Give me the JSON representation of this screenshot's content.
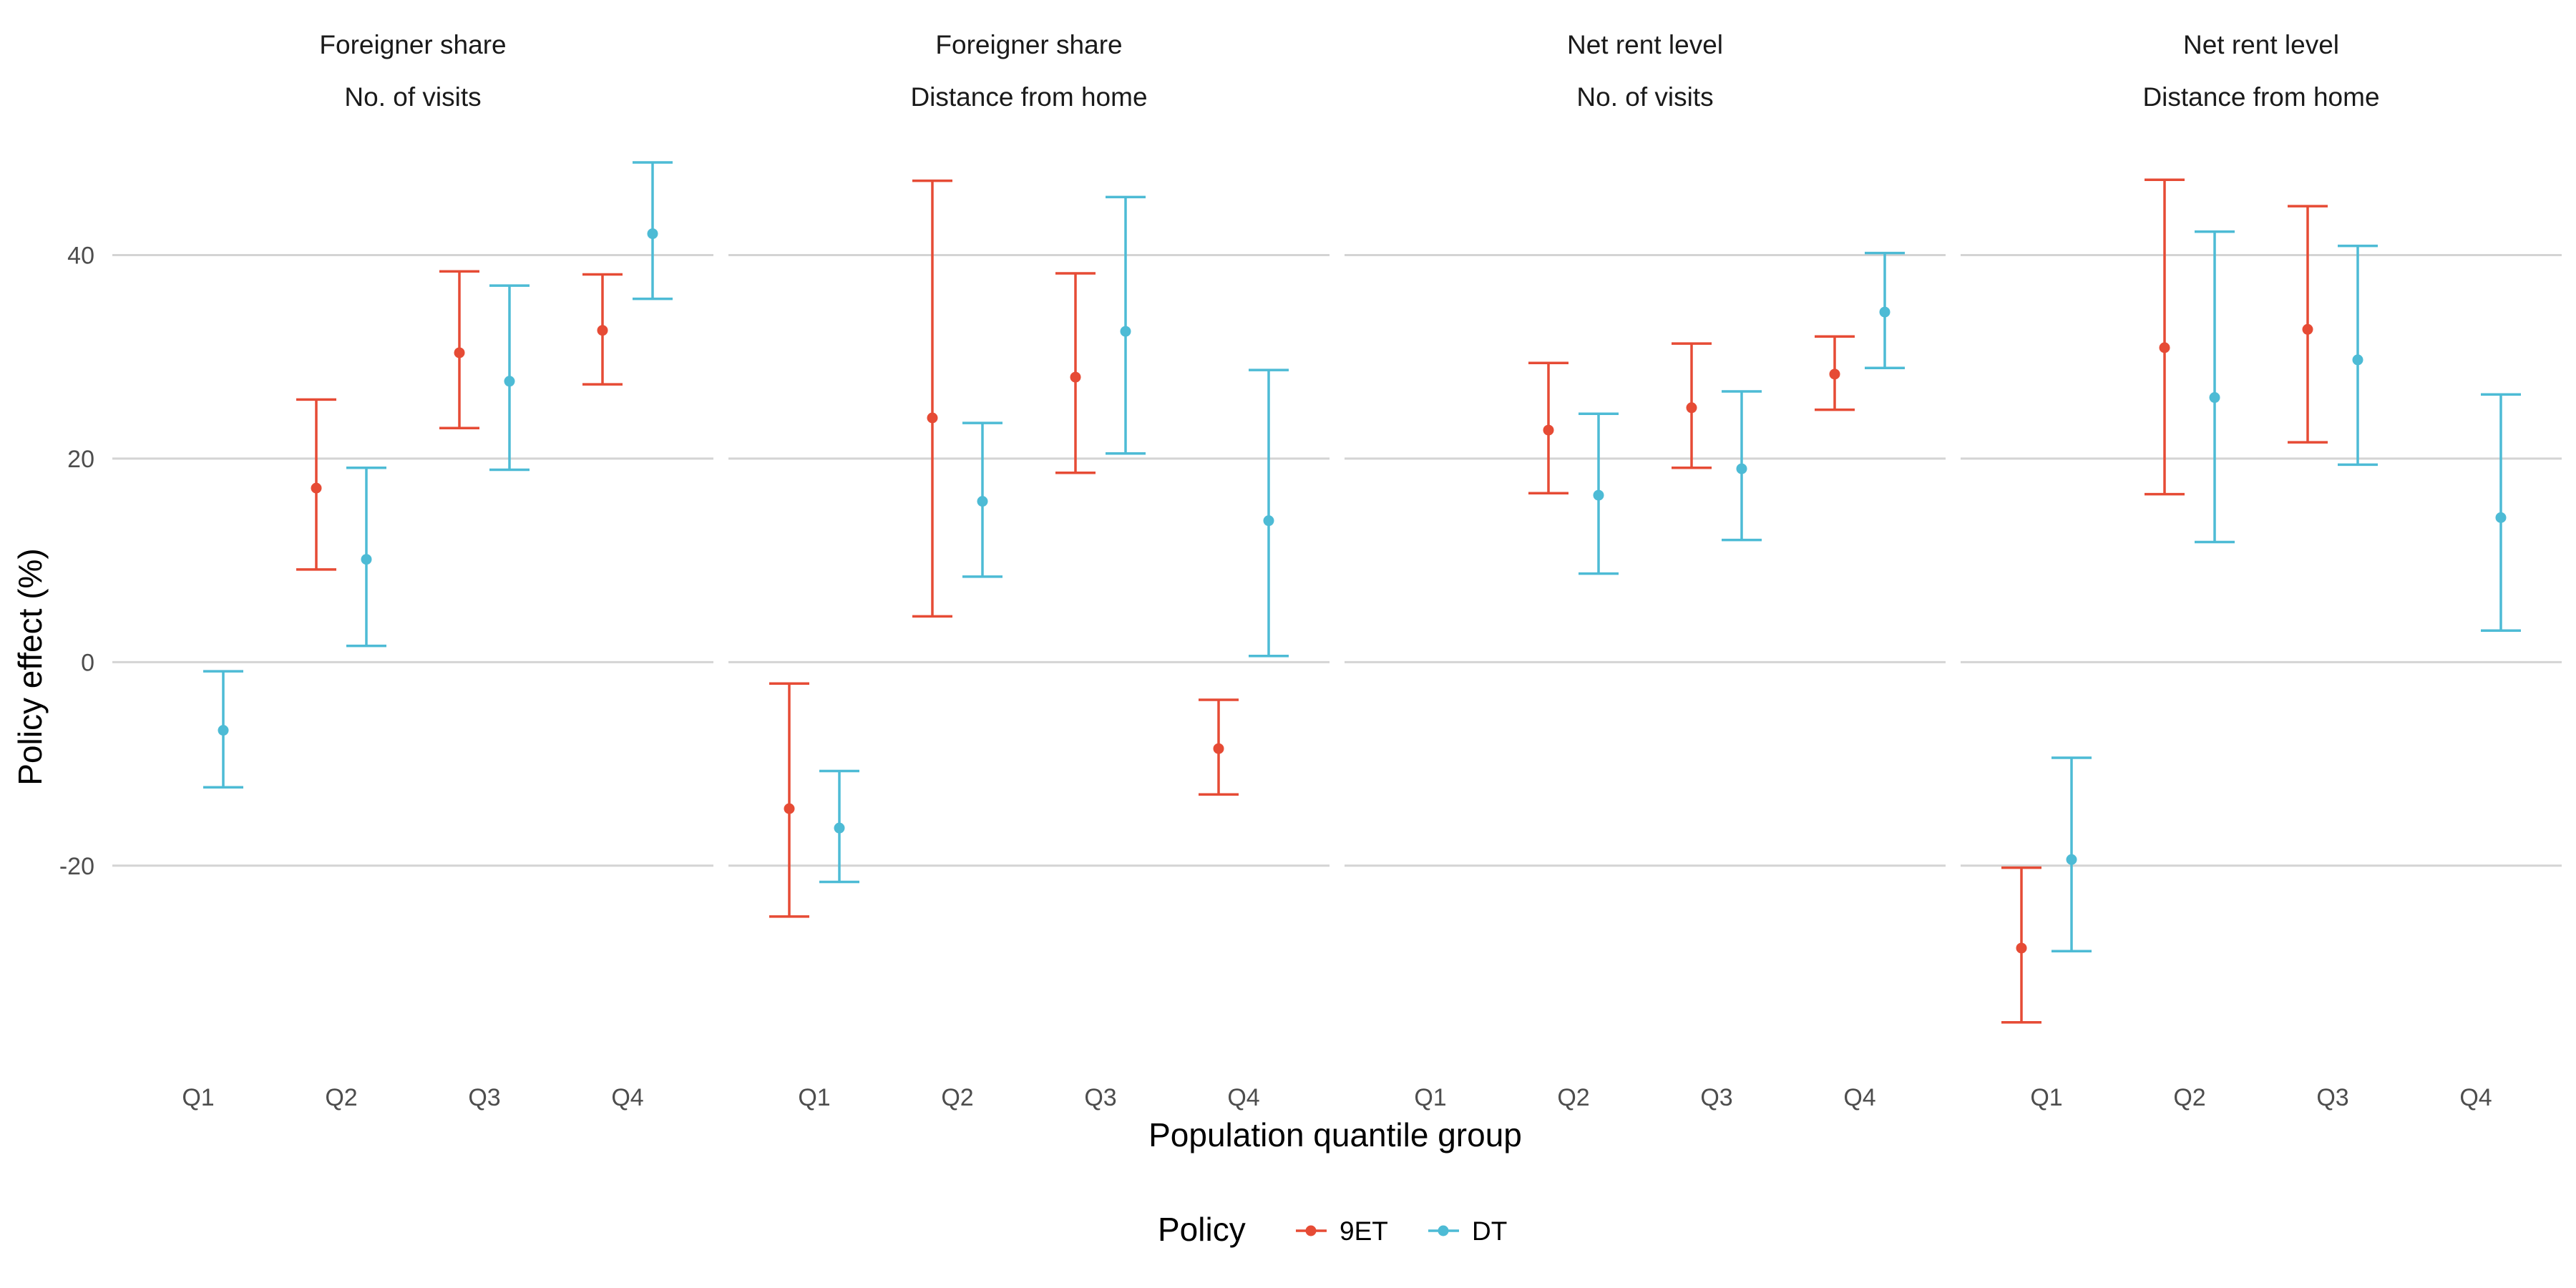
{
  "chart_data": {
    "type": "errorbar",
    "xlabel": "Population quantile group",
    "ylabel": "Policy effect (%)",
    "categories": [
      "Q1",
      "Q2",
      "Q3",
      "Q4"
    ],
    "y_ticks": [
      {
        "value": -20,
        "label": "-20"
      },
      {
        "value": 0,
        "label": "0"
      },
      {
        "value": 20,
        "label": "20"
      },
      {
        "value": 40,
        "label": "40"
      }
    ],
    "ylim": [
      -39,
      51
    ],
    "grid": "horizontal-major",
    "legend": {
      "title": "Policy",
      "position": "bottom",
      "items": [
        {
          "name": "9ET",
          "color": "#E64B35"
        },
        {
          "name": "DT",
          "color": "#4DBBD5"
        }
      ]
    },
    "panels": [
      {
        "strip_top": "Foreigner share",
        "strip_bottom": "No. of visits",
        "series": [
          {
            "name": "9ET",
            "points": [
              {
                "category": "Q2",
                "estimate": 17.1,
                "lower": 9.1,
                "upper": 25.8
              },
              {
                "category": "Q3",
                "estimate": 30.4,
                "lower": 23.0,
                "upper": 38.4
              },
              {
                "category": "Q4",
                "estimate": 32.6,
                "lower": 27.3,
                "upper": 38.1
              }
            ]
          },
          {
            "name": "DT",
            "points": [
              {
                "category": "Q1",
                "estimate": -6.7,
                "lower": -12.3,
                "upper": -0.9
              },
              {
                "category": "Q2",
                "estimate": 10.1,
                "lower": 1.6,
                "upper": 19.1
              },
              {
                "category": "Q3",
                "estimate": 27.6,
                "lower": 18.9,
                "upper": 37.0
              },
              {
                "category": "Q4",
                "estimate": 42.1,
                "lower": 35.7,
                "upper": 49.1
              }
            ]
          }
        ]
      },
      {
        "strip_top": "Foreigner share",
        "strip_bottom": "Distance from home",
        "series": [
          {
            "name": "9ET",
            "points": [
              {
                "category": "Q1",
                "estimate": -14.4,
                "lower": -25.0,
                "upper": -2.1
              },
              {
                "category": "Q2",
                "estimate": 24.0,
                "lower": 4.5,
                "upper": 47.3
              },
              {
                "category": "Q3",
                "estimate": 28.0,
                "lower": 18.6,
                "upper": 38.2
              },
              {
                "category": "Q4",
                "estimate": -8.5,
                "lower": -13.0,
                "upper": -3.7
              }
            ]
          },
          {
            "name": "DT",
            "points": [
              {
                "category": "Q1",
                "estimate": -16.3,
                "lower": -21.6,
                "upper": -10.7
              },
              {
                "category": "Q2",
                "estimate": 15.8,
                "lower": 8.4,
                "upper": 23.5
              },
              {
                "category": "Q3",
                "estimate": 32.5,
                "lower": 20.5,
                "upper": 45.7
              },
              {
                "category": "Q4",
                "estimate": 13.9,
                "lower": 0.6,
                "upper": 28.7
              }
            ]
          }
        ]
      },
      {
        "strip_top": "Net rent level",
        "strip_bottom": "No. of visits",
        "series": [
          {
            "name": "9ET",
            "points": [
              {
                "category": "Q2",
                "estimate": 22.8,
                "lower": 16.6,
                "upper": 29.4
              },
              {
                "category": "Q3",
                "estimate": 25.0,
                "lower": 19.1,
                "upper": 31.3
              },
              {
                "category": "Q4",
                "estimate": 28.3,
                "lower": 24.8,
                "upper": 32.0
              }
            ]
          },
          {
            "name": "DT",
            "points": [
              {
                "category": "Q2",
                "estimate": 16.4,
                "lower": 8.7,
                "upper": 24.4
              },
              {
                "category": "Q3",
                "estimate": 19.0,
                "lower": 12.0,
                "upper": 26.6
              },
              {
                "category": "Q4",
                "estimate": 34.4,
                "lower": 28.9,
                "upper": 40.2
              }
            ]
          }
        ]
      },
      {
        "strip_top": "Net rent level",
        "strip_bottom": "Distance from home",
        "series": [
          {
            "name": "9ET",
            "points": [
              {
                "category": "Q1",
                "estimate": -28.1,
                "lower": -35.4,
                "upper": -20.2
              },
              {
                "category": "Q2",
                "estimate": 30.9,
                "lower": 16.5,
                "upper": 47.4
              },
              {
                "category": "Q3",
                "estimate": 32.7,
                "lower": 21.6,
                "upper": 44.8
              }
            ]
          },
          {
            "name": "DT",
            "points": [
              {
                "category": "Q1",
                "estimate": -19.4,
                "lower": -28.4,
                "upper": -9.4
              },
              {
                "category": "Q2",
                "estimate": 26.0,
                "lower": 11.8,
                "upper": 42.3
              },
              {
                "category": "Q3",
                "estimate": 29.7,
                "lower": 19.4,
                "upper": 40.9
              },
              {
                "category": "Q4",
                "estimate": 14.2,
                "lower": 3.1,
                "upper": 26.3
              }
            ]
          }
        ]
      }
    ]
  }
}
